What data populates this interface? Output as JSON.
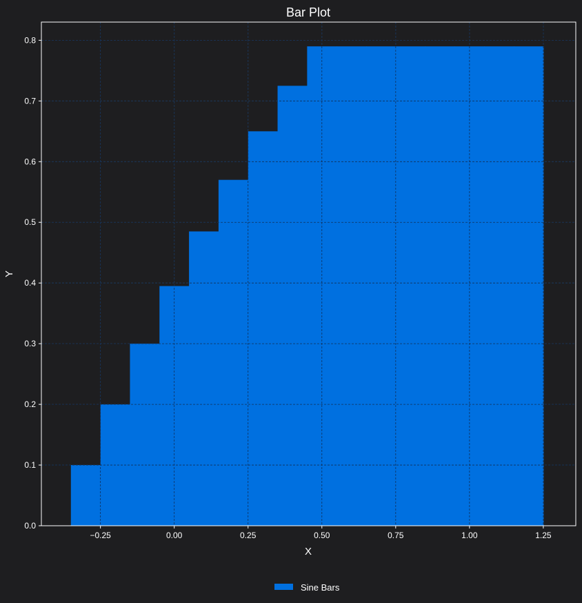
{
  "chart_data": {
    "type": "bar",
    "title": "Bar Plot",
    "xlabel": "X",
    "ylabel": "Y",
    "xlim": [
      -0.45,
      1.36
    ],
    "ylim": [
      0,
      0.83
    ],
    "grid": true,
    "legend_position": "bottom-center",
    "bar_width": 0.1,
    "x_ticks": [
      -0.25,
      0.0,
      0.25,
      0.5,
      0.75,
      1.0,
      1.25
    ],
    "x_tick_labels": [
      "−0.25",
      "0.00",
      "0.25",
      "0.50",
      "0.75",
      "1.00",
      "1.25"
    ],
    "y_ticks": [
      0.0,
      0.1,
      0.2,
      0.3,
      0.4,
      0.5,
      0.6,
      0.7,
      0.8
    ],
    "y_tick_labels": [
      "0.0",
      "0.1",
      "0.2",
      "0.3",
      "0.4",
      "0.5",
      "0.6",
      "0.7",
      "0.8"
    ],
    "series": [
      {
        "name": "Sine Bars",
        "color": "#0070e0",
        "x": [
          -0.3,
          -0.2,
          -0.1,
          0.0,
          0.1,
          0.2,
          0.3,
          0.4,
          0.5,
          0.6,
          0.7,
          0.8,
          0.9,
          1.0,
          1.1,
          1.2
        ],
        "values": [
          0.1,
          0.2,
          0.3,
          0.395,
          0.485,
          0.57,
          0.65,
          0.725,
          0.79,
          0.79,
          0.79,
          0.79,
          0.79,
          0.79,
          0.79,
          0.79
        ]
      }
    ],
    "colors": {
      "background": "#1e1e20",
      "axes_edge": "#ffffff",
      "grid": "#4a4a4a",
      "text": "#ffffff"
    }
  }
}
